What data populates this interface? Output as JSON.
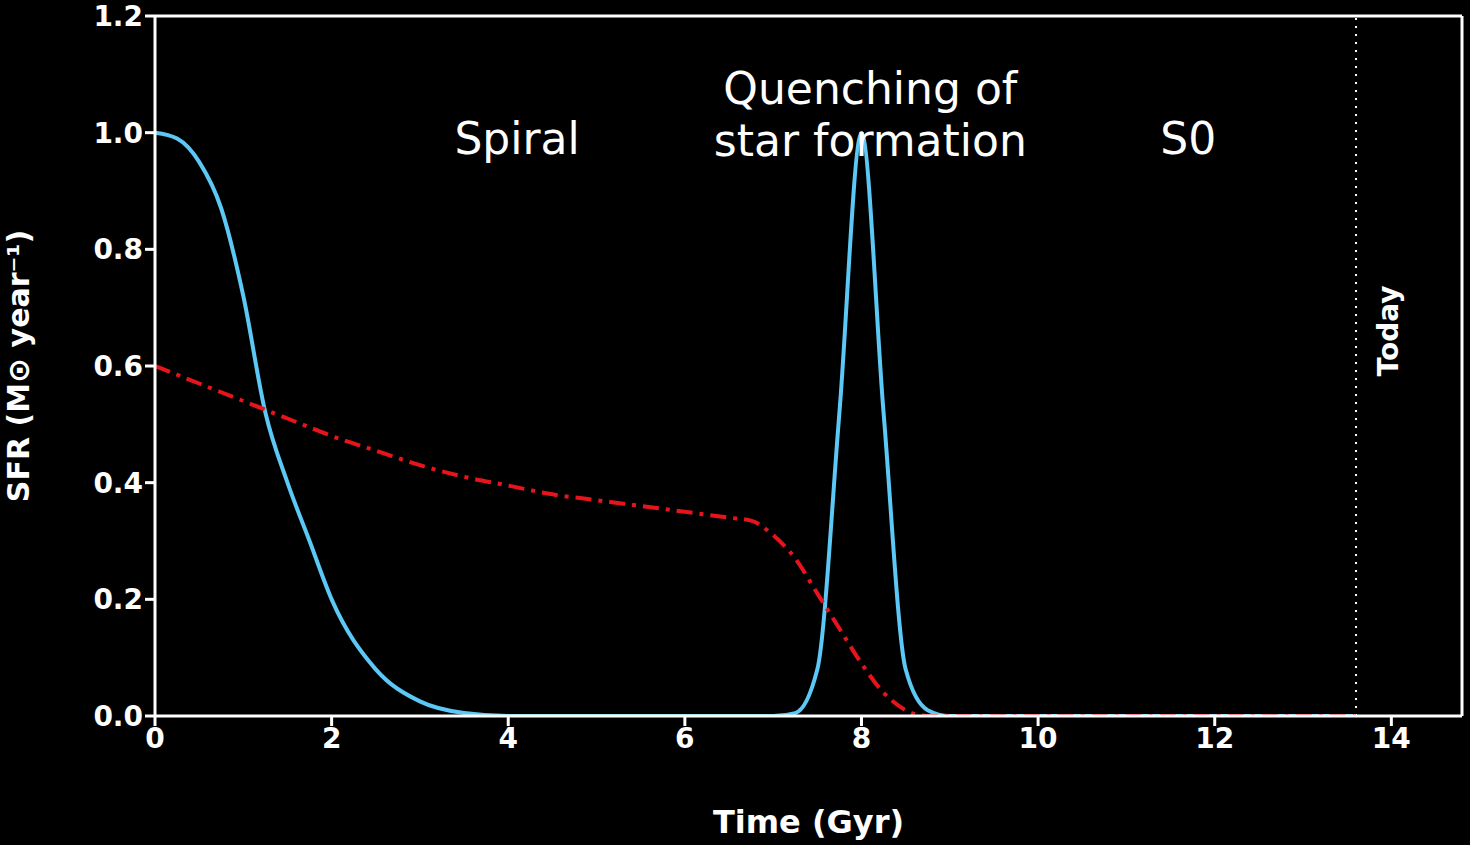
{
  "chart_data": {
    "type": "line",
    "x_label": "Time (Gyr)",
    "y_label": "SFR (M⊙ year⁻¹)",
    "x": [
      0,
      0.25,
      0.5,
      0.75,
      1,
      1.25,
      1.5,
      1.75,
      2,
      2.5,
      3,
      3.5,
      4,
      4.5,
      5,
      5.5,
      6,
      6.5,
      6.75,
      7,
      7.25,
      7.5,
      7.75,
      8,
      8.25,
      8.5,
      8.75,
      9,
      10,
      11,
      12,
      13,
      13.6
    ],
    "series": [
      {
        "color": "#5bc8f5",
        "line_style": "solid",
        "values": [
          1.0,
          0.99,
          0.95,
          0.87,
          0.72,
          0.52,
          0.4,
          0.3,
          0.2,
          0.08,
          0.025,
          0.005,
          0,
          0,
          0,
          0,
          0,
          0,
          0,
          0,
          0.005,
          0.08,
          0.52,
          1.0,
          0.52,
          0.08,
          0.01,
          0,
          0,
          0,
          0,
          0,
          0
        ]
      },
      {
        "color": "#e8141c",
        "line_style": "dashdot",
        "values": [
          0.6,
          0.585,
          0.57,
          0.555,
          0.54,
          0.525,
          0.51,
          0.495,
          0.48,
          0.455,
          0.43,
          0.41,
          0.395,
          0.38,
          0.37,
          0.36,
          0.35,
          0.34,
          0.335,
          0.31,
          0.27,
          0.21,
          0.15,
          0.09,
          0.04,
          0.01,
          0,
          0,
          0,
          0,
          0,
          0,
          0
        ]
      }
    ],
    "xlim": [
      0,
      14.8
    ],
    "xticks": [
      0,
      2,
      4,
      6,
      8,
      10,
      12,
      14
    ],
    "ylim": [
      0,
      1.2
    ],
    "yticks": [
      {
        "value": 0,
        "label": "0.0"
      },
      0.2,
      0.4,
      0.6,
      0.8,
      {
        "value": 1,
        "label": "1.0"
      },
      1.2
    ],
    "grid": false,
    "annotations": [
      {
        "lines": [
          "Spiral"
        ],
        "x": 4.1,
        "y": 0.99
      },
      {
        "lines": [
          "Quenching of",
          "star formation"
        ],
        "x": 8.1,
        "y": 1.03
      },
      {
        "lines": [
          "S0"
        ],
        "x": 11.7,
        "y": 0.99
      }
    ],
    "vline": {
      "x": 13.6,
      "label": "Today",
      "line_style": "dotted"
    }
  }
}
